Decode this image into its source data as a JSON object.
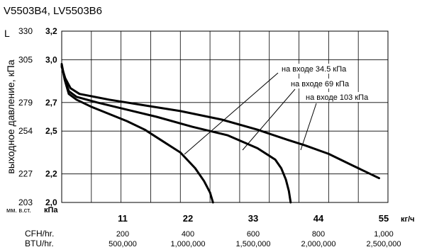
{
  "chart_data": {
    "type": "line",
    "title": "V5503B4, LV5503B6",
    "ylabel": "выходное давление, кПа",
    "xlabel_unit": "кг/ч",
    "y_unit_left": "L",
    "y_unit_mm": "мм. в.ст.",
    "y_unit_kpa": "кПа",
    "ylim": [
      2.0,
      3.2
    ],
    "xlim": [
      0,
      55
    ],
    "grid": true,
    "y_ticks": [
      {
        "mm": "330",
        "kpa": "3,2",
        "value": 3.2
      },
      {
        "mm": "305",
        "kpa": "3,0",
        "value": 3.0
      },
      {
        "mm": "279",
        "kpa": "2,7",
        "value": 2.7
      },
      {
        "mm": "254",
        "kpa": "2,5",
        "value": 2.5
      },
      {
        "mm": "227",
        "kpa": "2,2",
        "value": 2.2
      },
      {
        "mm": "203",
        "kpa": "2,0",
        "value": 2.0
      }
    ],
    "x_ticks": [
      {
        "label": "11",
        "value": 11
      },
      {
        "label": "22",
        "value": 22
      },
      {
        "label": "33",
        "value": 33
      },
      {
        "label": "44",
        "value": 44
      },
      {
        "label": "55",
        "value": 55
      }
    ],
    "extra_rows": [
      {
        "label": "CFH/hr.",
        "values": [
          "200",
          "400",
          "600",
          "800",
          "1,000"
        ]
      },
      {
        "label": "BTU/hr.",
        "values": [
          "500,000",
          "1,000,000",
          "1,500,000",
          "2,000,000",
          "2,500,000"
        ]
      }
    ],
    "series": [
      {
        "name": "на входе 34.5 кПа",
        "points": [
          [
            0,
            2.97
          ],
          [
            0.5,
            2.86
          ],
          [
            1.2,
            2.76
          ],
          [
            2.5,
            2.72
          ],
          [
            5,
            2.67
          ],
          [
            8,
            2.62
          ],
          [
            11,
            2.57
          ],
          [
            14,
            2.51
          ],
          [
            17,
            2.43
          ],
          [
            20,
            2.35
          ],
          [
            22.5,
            2.24
          ],
          [
            24,
            2.15
          ],
          [
            25,
            2.07
          ],
          [
            25.5,
            2.0
          ]
        ]
      },
      {
        "name": "на входе 69 кПа",
        "points": [
          [
            0,
            2.96
          ],
          [
            0.5,
            2.87
          ],
          [
            1.2,
            2.78
          ],
          [
            2.5,
            2.74
          ],
          [
            6,
            2.7
          ],
          [
            11,
            2.65
          ],
          [
            16,
            2.6
          ],
          [
            22,
            2.53
          ],
          [
            28,
            2.47
          ],
          [
            33,
            2.38
          ],
          [
            36,
            2.3
          ],
          [
            37,
            2.24
          ],
          [
            37.8,
            2.16
          ],
          [
            38.3,
            2.08
          ],
          [
            38.6,
            2.0
          ]
        ]
      },
      {
        "name": "на входе 103 кПа",
        "points": [
          [
            0,
            2.95
          ],
          [
            0.6,
            2.87
          ],
          [
            1.5,
            2.8
          ],
          [
            3,
            2.76
          ],
          [
            8,
            2.72
          ],
          [
            14,
            2.68
          ],
          [
            20,
            2.64
          ],
          [
            27,
            2.58
          ],
          [
            33,
            2.51
          ],
          [
            38,
            2.44
          ],
          [
            41,
            2.4
          ],
          [
            45,
            2.34
          ],
          [
            49,
            2.26
          ],
          [
            53.5,
            2.17
          ]
        ]
      }
    ],
    "annotations": [
      {
        "text": "на входе 34.5 кПа",
        "series": 0
      },
      {
        "text": "на входе 69 кПа",
        "series": 1
      },
      {
        "text": "на входе 103 кПа",
        "series": 2
      }
    ]
  }
}
